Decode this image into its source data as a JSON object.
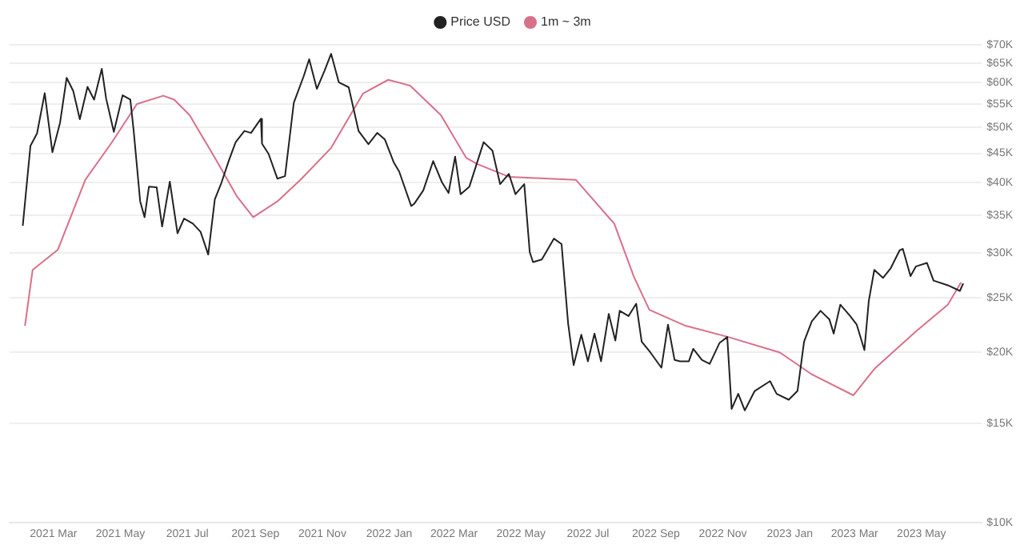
{
  "chart_data": {
    "type": "line",
    "legend": "top",
    "grid": "y",
    "log": "y",
    "marker": "none",
    "line_style": "solid",
    "ylim": [
      10000,
      70000
    ],
    "yticks": [
      {
        "value": 10000,
        "label": "$10K"
      },
      {
        "value": 15000,
        "label": "$15K"
      },
      {
        "value": 20000,
        "label": "$20K"
      },
      {
        "value": 25000,
        "label": "$25K"
      },
      {
        "value": 30000,
        "label": "$30K"
      },
      {
        "value": 35000,
        "label": "$35K"
      },
      {
        "value": 40000,
        "label": "$40K"
      },
      {
        "value": 45000,
        "label": "$45K"
      },
      {
        "value": 50000,
        "label": "$50K"
      },
      {
        "value": 55000,
        "label": "$55K"
      },
      {
        "value": 60000,
        "label": "$60K"
      },
      {
        "value": 65000,
        "label": "$65K"
      },
      {
        "value": 70000,
        "label": "$70K"
      }
    ],
    "xlim": [
      "2021-01-20",
      "2023-06-25"
    ],
    "xticks": [
      {
        "value": "2021-03-01",
        "label": "2021 Mar"
      },
      {
        "value": "2021-05-01",
        "label": "2021 May"
      },
      {
        "value": "2021-07-01",
        "label": "2021 Jul"
      },
      {
        "value": "2021-09-01",
        "label": "2021 Sep"
      },
      {
        "value": "2021-11-01",
        "label": "2021 Nov"
      },
      {
        "value": "2022-01-01",
        "label": "2022 Jan"
      },
      {
        "value": "2022-03-01",
        "label": "2022 Mar"
      },
      {
        "value": "2022-05-01",
        "label": "2022 May"
      },
      {
        "value": "2022-07-01",
        "label": "2022 Jul"
      },
      {
        "value": "2022-09-01",
        "label": "2022 Sep"
      },
      {
        "value": "2022-11-01",
        "label": "2022 Nov"
      },
      {
        "value": "2023-01-01",
        "label": "2023 Jan"
      },
      {
        "value": "2023-03-01",
        "label": "2023 Mar"
      },
      {
        "value": "2023-05-01",
        "label": "2023 May"
      }
    ],
    "series": [
      {
        "name": "Price USD",
        "color": "#222222",
        "x": [
          "2021-02-01",
          "2021-02-08",
          "2021-02-14",
          "2021-02-21",
          "2021-02-28",
          "2021-03-07",
          "2021-03-13",
          "2021-03-19",
          "2021-03-25",
          "2021-04-01",
          "2021-04-07",
          "2021-04-14",
          "2021-04-18",
          "2021-04-25",
          "2021-05-03",
          "2021-05-10",
          "2021-05-13",
          "2021-05-19",
          "2021-05-23",
          "2021-05-27",
          "2021-06-03",
          "2021-06-08",
          "2021-06-15",
          "2021-06-22",
          "2021-06-28",
          "2021-07-06",
          "2021-07-13",
          "2021-07-20",
          "2021-07-26",
          "2021-08-01",
          "2021-08-08",
          "2021-08-14",
          "2021-08-22",
          "2021-08-28",
          "2021-09-06",
          "2021-09-07",
          "2021-09-13",
          "2021-09-21",
          "2021-09-28",
          "2021-10-06",
          "2021-10-15",
          "2021-10-20",
          "2021-10-27",
          "2021-11-03",
          "2021-11-09",
          "2021-11-16",
          "2021-11-25",
          "2021-12-04",
          "2021-12-13",
          "2021-12-21",
          "2021-12-28",
          "2022-01-05",
          "2022-01-10",
          "2022-01-21",
          "2022-01-24",
          "2022-02-01",
          "2022-02-10",
          "2022-02-18",
          "2022-02-24",
          "2022-03-02",
          "2022-03-07",
          "2022-03-15",
          "2022-03-28",
          "2022-04-05",
          "2022-04-12",
          "2022-04-20",
          "2022-04-26",
          "2022-05-04",
          "2022-05-09",
          "2022-05-12",
          "2022-05-20",
          "2022-05-31",
          "2022-06-07",
          "2022-06-13",
          "2022-06-18",
          "2022-06-25",
          "2022-07-01",
          "2022-07-07",
          "2022-07-13",
          "2022-07-20",
          "2022-07-26",
          "2022-07-30",
          "2022-08-07",
          "2022-08-14",
          "2022-08-19",
          "2022-08-27",
          "2022-09-06",
          "2022-09-12",
          "2022-09-18",
          "2022-09-23",
          "2022-10-01",
          "2022-10-05",
          "2022-10-13",
          "2022-10-20",
          "2022-10-29",
          "2022-11-05",
          "2022-11-09",
          "2022-11-15",
          "2022-11-21",
          "2022-11-30",
          "2022-12-14",
          "2022-12-20",
          "2022-12-31",
          "2023-01-08",
          "2023-01-14",
          "2023-01-21",
          "2023-01-29",
          "2023-02-06",
          "2023-02-10",
          "2023-02-16",
          "2023-02-25",
          "2023-03-03",
          "2023-03-10",
          "2023-03-14",
          "2023-03-19",
          "2023-03-27",
          "2023-04-03",
          "2023-04-11",
          "2023-04-14",
          "2023-04-21",
          "2023-04-26",
          "2023-05-06",
          "2023-05-12",
          "2023-05-25",
          "2023-06-05",
          "2023-06-08"
        ],
        "values": [
          33500,
          46400,
          48800,
          57500,
          45200,
          51000,
          61200,
          58000,
          51700,
          59000,
          56000,
          63500,
          56200,
          49100,
          57000,
          56000,
          49500,
          37000,
          34700,
          39300,
          39200,
          33400,
          40100,
          32500,
          34500,
          33800,
          32700,
          29800,
          37300,
          39900,
          43800,
          47100,
          49300,
          48900,
          51800,
          46800,
          44900,
          40600,
          41000,
          55300,
          61600,
          66000,
          58500,
          63000,
          67500,
          60100,
          58900,
          49300,
          46700,
          48900,
          47600,
          43400,
          41800,
          36300,
          36700,
          38700,
          43600,
          40000,
          38300,
          44400,
          38100,
          39300,
          47100,
          45500,
          39700,
          41400,
          38100,
          39700,
          30100,
          28900,
          29200,
          31800,
          31100,
          22500,
          19000,
          21500,
          19300,
          21600,
          19300,
          23400,
          21000,
          23700,
          23200,
          24400,
          20900,
          20000,
          18800,
          22400,
          19400,
          19300,
          19300,
          20300,
          19400,
          19100,
          20800,
          21300,
          15900,
          16900,
          15800,
          17100,
          17800,
          16900,
          16500,
          17100,
          20900,
          22700,
          23700,
          22900,
          21600,
          24300,
          23200,
          22400,
          20200,
          24700,
          28000,
          27100,
          28200,
          30300,
          30500,
          27300,
          28400,
          28800,
          26800,
          26300,
          25700,
          26500
        ]
      },
      {
        "name": "1m ~ 3m",
        "color": "#d9708a",
        "x": [
          "2021-02-03",
          "2021-02-10",
          "2021-03-05",
          "2021-03-30",
          "2021-04-23",
          "2021-05-16",
          "2021-06-09",
          "2021-06-19",
          "2021-07-03",
          "2021-07-26",
          "2021-08-15",
          "2021-08-30",
          "2021-09-21",
          "2021-10-12",
          "2021-11-09",
          "2021-12-08",
          "2021-12-31",
          "2022-01-20",
          "2022-02-17",
          "2022-03-12",
          "2022-03-22",
          "2022-04-20",
          "2022-06-20",
          "2022-07-25",
          "2022-08-12",
          "2022-08-26",
          "2022-09-28",
          "2022-11-06",
          "2022-12-23",
          "2023-01-21",
          "2023-02-28",
          "2023-03-19",
          "2023-04-26",
          "2023-05-25",
          "2023-06-06"
        ],
        "values": [
          22300,
          28000,
          30400,
          40400,
          47000,
          55000,
          56900,
          56000,
          52600,
          44200,
          37800,
          34700,
          37000,
          40400,
          46000,
          57400,
          60700,
          59300,
          52600,
          44200,
          43100,
          40900,
          40400,
          33800,
          27200,
          23800,
          22300,
          21300,
          20000,
          18300,
          16800,
          18700,
          21800,
          24300,
          26600
        ]
      }
    ]
  }
}
